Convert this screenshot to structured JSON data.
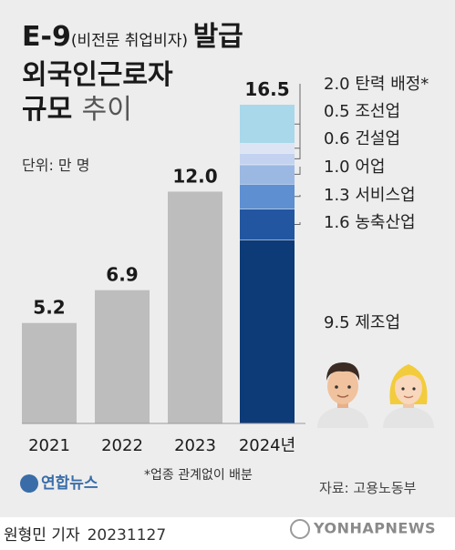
{
  "title": {
    "line1_main": "E-9",
    "line1_paren": "(비전문 취업비자)",
    "line1_tail": "발급",
    "line2": "외국인근로자",
    "line3_bold": "규모",
    "line3_light": "추이"
  },
  "unit_label": "단위: 만 명",
  "note": "*업종 관계없이 배분",
  "source": "자료: 고용노동부",
  "logo_text": "연합뉴스",
  "byline": "원형민 기자",
  "date": "20231127",
  "watermark": "YONHAPNEWS",
  "colors": {
    "bar_gray": "#bdbdbd",
    "background": "#ededed"
  },
  "chart_data": {
    "type": "bar",
    "categories": [
      "2021",
      "2022",
      "2023",
      "2024년"
    ],
    "values": [
      5.2,
      6.9,
      12.0,
      16.5
    ],
    "value_labels": [
      "5.2",
      "6.9",
      "12.0",
      "16.5"
    ],
    "ylim": [
      0,
      16.5
    ],
    "stacked_2024": [
      {
        "name": "제조업",
        "value": 9.5,
        "label": "9.5",
        "color": "#0d3b78"
      },
      {
        "name": "농축산업",
        "value": 1.6,
        "label": "1.6",
        "color": "#2356a0"
      },
      {
        "name": "서비스업",
        "value": 1.3,
        "label": "1.3",
        "color": "#5e8fd1"
      },
      {
        "name": "어업",
        "value": 1.0,
        "label": "1.0",
        "color": "#9bb8e2"
      },
      {
        "name": "건설업",
        "value": 0.6,
        "label": "0.6",
        "color": "#c3d2ef"
      },
      {
        "name": "조선업",
        "value": 0.5,
        "label": "0.5",
        "color": "#dde4f4"
      },
      {
        "name": "탄력 배정*",
        "value": 2.0,
        "label": "2.0",
        "color": "#a8d8ea"
      }
    ]
  }
}
